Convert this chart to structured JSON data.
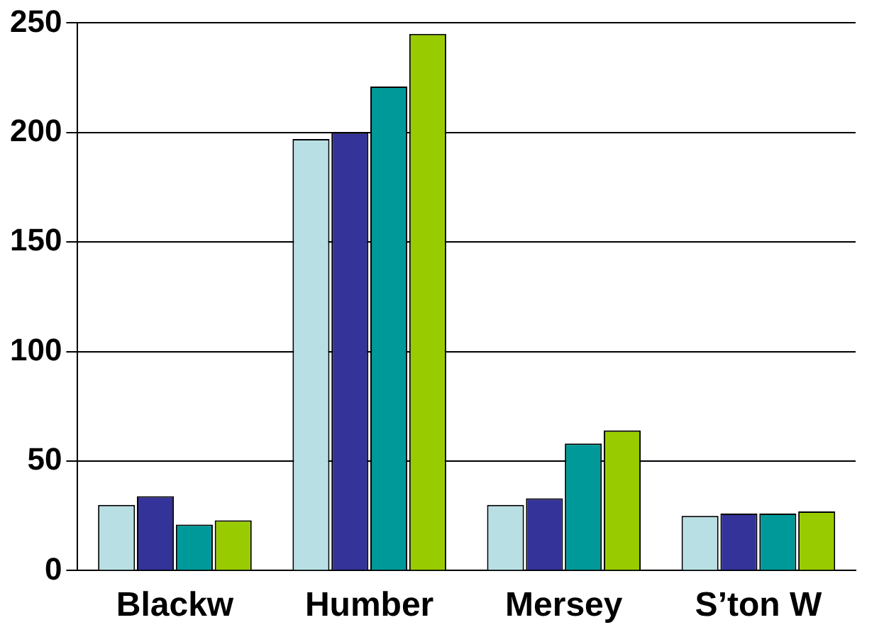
{
  "chart_data": {
    "type": "bar",
    "categories": [
      "Blackw",
      "Humber",
      "Mersey",
      "S’ton W"
    ],
    "series": [
      {
        "color": "#b8e0e4",
        "values": [
          30,
          197,
          30,
          25
        ]
      },
      {
        "color": "#333399",
        "values": [
          34,
          200,
          33,
          26
        ]
      },
      {
        "color": "#009999",
        "values": [
          21,
          221,
          58,
          26
        ]
      },
      {
        "color": "#99cc00",
        "values": [
          23,
          245,
          64,
          27
        ]
      }
    ],
    "ylim": [
      0,
      250
    ],
    "yticks": [
      0,
      50,
      100,
      150,
      200,
      250
    ],
    "grid": "y",
    "legend": false
  }
}
